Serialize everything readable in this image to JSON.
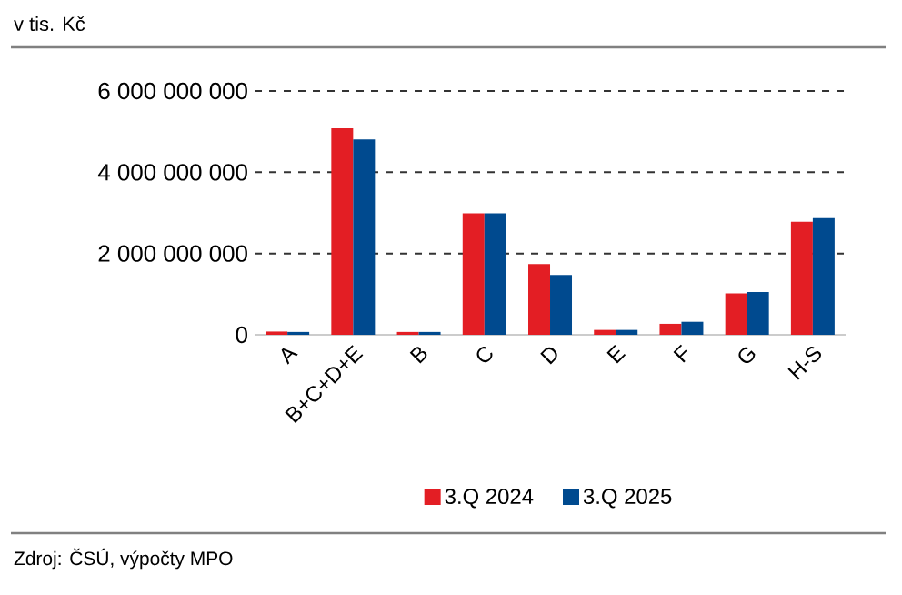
{
  "chart_data": {
    "type": "bar",
    "title": "v tis. Kč",
    "categories": [
      "A",
      "B+C+D+E",
      "B",
      "C",
      "D",
      "E",
      "F",
      "G",
      "H-S"
    ],
    "series": [
      {
        "name": "3.Q 2024",
        "color": "#e31e24",
        "values": [
          80000000,
          5080000000,
          70000000,
          2990000000,
          1740000000,
          120000000,
          270000000,
          1020000000,
          2780000000
        ]
      },
      {
        "name": "3.Q 2025",
        "color": "#004a8f",
        "values": [
          70000000,
          4810000000,
          70000000,
          2990000000,
          1470000000,
          120000000,
          320000000,
          1050000000,
          2870000000
        ]
      }
    ],
    "ylim": [
      0,
      6000000000
    ],
    "yticks": [
      0,
      {
        "value": 2000000000,
        "label": "2 000 000 000"
      },
      {
        "value": 4000000000,
        "label": "4 000 000 000"
      },
      {
        "value": 6000000000,
        "label": "6 000 000 000"
      }
    ],
    "grid": "y",
    "legend": "bottom",
    "annotations": [
      "Zdroj: ČSÚ, výpočty MPO"
    ]
  }
}
